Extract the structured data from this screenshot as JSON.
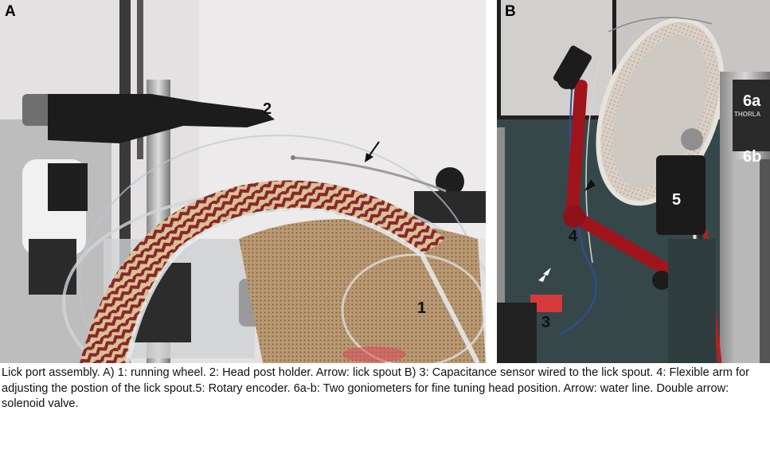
{
  "panels": {
    "a": {
      "letter": "A",
      "labels": {
        "wheel": "1",
        "head_post_holder": "2"
      }
    },
    "b": {
      "letter": "B",
      "labels": {
        "capacitance_sensor": "3",
        "flexible_arm": "4",
        "rotary_encoder": "5",
        "goniometer_a": "6a",
        "goniometer_b": "6b"
      },
      "product_text": "THORLA"
    }
  },
  "caption": {
    "text": "Lick port assembly. A) 1: running wheel. 2: Head post holder. Arrow: lick spout B) 3: Capacitance sensor wired to the lick spout. 4: Flexible arm for adjusting the postion of the lick spout.5: Rotary encoder. 6a-b: Two goniometers for fine tuning head position. Arrow: water line. Double arrow: solenoid valve."
  },
  "colors": {
    "wheel_fabric_red": "#8a2433",
    "wheel_fabric_tan": "#d8c38f",
    "flex_arm_red": "#a0141c",
    "bench_teal": "#2f3d3f"
  }
}
